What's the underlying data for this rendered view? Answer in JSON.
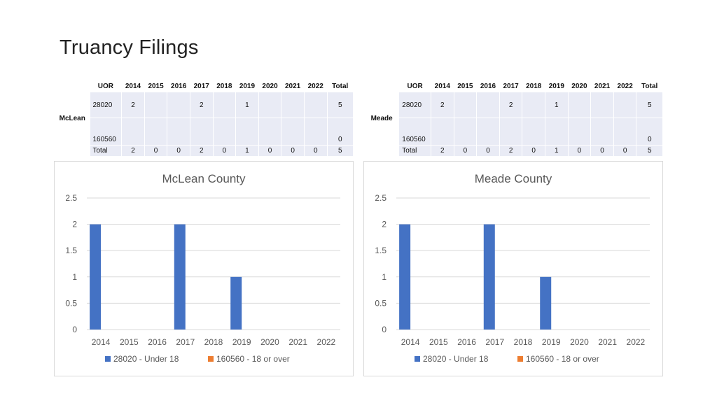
{
  "page": {
    "title": "Truancy Filings"
  },
  "tables": [
    {
      "county": "McLean",
      "header": [
        "UOR",
        "2014",
        "2015",
        "2016",
        "2017",
        "2018",
        "2019",
        "2020",
        "2021",
        "2022",
        "Total"
      ],
      "rows": [
        [
          "28020",
          "2",
          "",
          "",
          "2",
          "",
          "1",
          "",
          "",
          "",
          "5"
        ],
        [
          "160560",
          "",
          "",
          "",
          "",
          "",
          "",
          "",
          "",
          "",
          "0"
        ],
        [
          "Total",
          "2",
          "0",
          "0",
          "2",
          "0",
          "1",
          "0",
          "0",
          "0",
          "5"
        ]
      ]
    },
    {
      "county": "Meade",
      "header": [
        "UOR",
        "2014",
        "2015",
        "2016",
        "2017",
        "2018",
        "2019",
        "2020",
        "2021",
        "2022",
        "Total"
      ],
      "rows": [
        [
          "28020",
          "2",
          "",
          "",
          "2",
          "",
          "1",
          "",
          "",
          "",
          "5"
        ],
        [
          "160560",
          "",
          "",
          "",
          "",
          "",
          "",
          "",
          "",
          "",
          "0"
        ],
        [
          "Total",
          "2",
          "0",
          "0",
          "2",
          "0",
          "1",
          "0",
          "0",
          "0",
          "5"
        ]
      ]
    }
  ],
  "chart_data": [
    {
      "type": "bar",
      "title": "McLean County",
      "categories": [
        "2014",
        "2015",
        "2016",
        "2017",
        "2018",
        "2019",
        "2020",
        "2021",
        "2022"
      ],
      "series": [
        {
          "name": "28020 - Under 18",
          "color": "#4472c4",
          "values": [
            2,
            0,
            0,
            2,
            0,
            1,
            0,
            0,
            0
          ]
        },
        {
          "name": "160560 - 18 or over",
          "color": "#ed7d31",
          "values": [
            0,
            0,
            0,
            0,
            0,
            0,
            0,
            0,
            0
          ]
        }
      ],
      "yticks": [
        "0",
        "0.5",
        "1",
        "1.5",
        "2",
        "2.5"
      ],
      "ylim": [
        0,
        2.5
      ],
      "grid": true,
      "legend": "bottom"
    },
    {
      "type": "bar",
      "title": "Meade County",
      "categories": [
        "2014",
        "2015",
        "2016",
        "2017",
        "2018",
        "2019",
        "2020",
        "2021",
        "2022"
      ],
      "series": [
        {
          "name": "28020 - Under 18",
          "color": "#4472c4",
          "values": [
            2,
            0,
            0,
            2,
            0,
            1,
            0,
            0,
            0
          ]
        },
        {
          "name": "160560 - 18 or over",
          "color": "#ed7d31",
          "values": [
            0,
            0,
            0,
            0,
            0,
            0,
            0,
            0,
            0
          ]
        }
      ],
      "yticks": [
        "0",
        "0.5",
        "1",
        "1.5",
        "2",
        "2.5"
      ],
      "ylim": [
        0,
        2.5
      ],
      "grid": true,
      "legend": "bottom"
    }
  ]
}
